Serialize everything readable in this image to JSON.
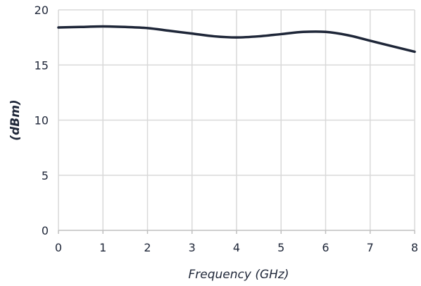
{
  "chart_data": {
    "type": "line",
    "title": "",
    "xlabel": "Frequency (GHz)",
    "ylabel": "(dBm)",
    "xlim": [
      0,
      8
    ],
    "ylim": [
      0,
      20
    ],
    "x_ticks": [
      "0",
      "1",
      "2",
      "3",
      "4",
      "5",
      "6",
      "7",
      "8"
    ],
    "y_ticks": [
      "0",
      "5",
      "10",
      "15",
      "20"
    ],
    "grid": true,
    "legend": "none",
    "series": [
      {
        "color": "#1e2638",
        "x": [
          0,
          0.5,
          1,
          1.5,
          2,
          2.5,
          3,
          3.5,
          4,
          4.5,
          5,
          5.5,
          6,
          6.5,
          7,
          7.5,
          8
        ],
        "y": [
          18.4,
          18.45,
          18.5,
          18.45,
          18.35,
          18.1,
          17.85,
          17.6,
          17.5,
          17.6,
          17.8,
          18.0,
          18.0,
          17.7,
          17.2,
          16.7,
          16.2
        ]
      }
    ]
  }
}
